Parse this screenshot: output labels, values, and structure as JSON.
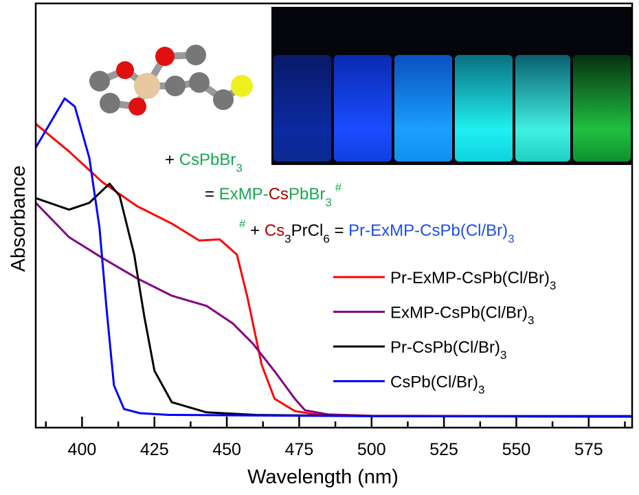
{
  "chart_data": {
    "type": "line",
    "title": "",
    "xlabel": "Wavelength (nm)",
    "ylabel": "Absorbance",
    "xlim": [
      384,
      590
    ],
    "ylim": [
      0,
      1
    ],
    "xticks": [
      400,
      425,
      450,
      475,
      500,
      525,
      550,
      575
    ],
    "yticks": [],
    "grid": false,
    "legend_position": "right-middle",
    "series": [
      {
        "name": "Pr-ExMP-CsPb(Cl/Br)",
        "sub": "3",
        "color": "#ff0000",
        "x": [
          384,
          395.5,
          407,
          419,
          431,
          440.5,
          447.5,
          453.5,
          457,
          462,
          466.5,
          473.5,
          480,
          500,
          590
        ],
        "y": [
          0.716,
          0.651,
          0.579,
          0.522,
          0.481,
          0.441,
          0.444,
          0.408,
          0.311,
          0.149,
          0.068,
          0.039,
          0.032,
          0.028,
          0.026
        ]
      },
      {
        "name": "ExMP-CsPb(Cl/Br)",
        "sub": "3",
        "color": "#800080",
        "x": [
          384,
          395.5,
          407,
          419,
          431,
          443,
          452,
          459,
          466.5,
          473.5,
          477,
          485,
          500,
          590
        ],
        "y": [
          0.53,
          0.449,
          0.4,
          0.352,
          0.311,
          0.287,
          0.246,
          0.198,
          0.133,
          0.068,
          0.041,
          0.031,
          0.027,
          0.027
        ]
      },
      {
        "name": "Pr-CsPb(Cl/Br)",
        "sub": "3",
        "color": "#000000",
        "x": [
          384,
          395.5,
          402.5,
          409.5,
          413,
          418,
          421.5,
          425,
          431,
          443,
          460,
          500,
          590
        ],
        "y": [
          0.541,
          0.514,
          0.53,
          0.575,
          0.546,
          0.408,
          0.262,
          0.134,
          0.06,
          0.036,
          0.03,
          0.027,
          0.026
        ]
      },
      {
        "name": "CsPb(Cl/Br)",
        "sub": "3",
        "color": "#0000ff",
        "x": [
          384,
          394,
          397.5,
          402.5,
          406,
          408.5,
          411,
          414.5,
          420,
          430,
          500,
          590
        ],
        "y": [
          0.66,
          0.776,
          0.757,
          0.636,
          0.473,
          0.278,
          0.1,
          0.044,
          0.034,
          0.03,
          0.027,
          0.027
        ]
      }
    ],
    "annotations": [
      {
        "segments": [
          {
            "text": "+ ",
            "color": "#000000"
          },
          {
            "text": "CsPbBr",
            "color": "#1aa552"
          },
          {
            "text": "3",
            "color": "#1aa552",
            "sub": true
          }
        ]
      },
      {
        "segments": [
          {
            "text": "= ",
            "color": "#000000"
          },
          {
            "text": "ExMP-",
            "color": "#1aa552"
          },
          {
            "text": "Cs",
            "color": "#b00000"
          },
          {
            "text": "PbBr",
            "color": "#1aa552"
          },
          {
            "text": "3",
            "color": "#1aa552",
            "sub": true
          },
          {
            "text": " #",
            "color": "#1aa552",
            "sup": true
          }
        ]
      },
      {
        "segments": [
          {
            "text": "#",
            "color": "#1aa552",
            "sup": true
          },
          {
            "text": " + ",
            "color": "#000000"
          },
          {
            "text": "Cs",
            "color": "#b00000"
          },
          {
            "text": "3",
            "color": "#000000",
            "sub": true
          },
          {
            "text": "PrCl",
            "color": "#000000"
          },
          {
            "text": "6",
            "color": "#000000",
            "sub": true
          },
          {
            "text": " = ",
            "color": "#000000"
          },
          {
            "text": "Pr-ExMP-CsPb(Cl/Br)",
            "color": "#1f4fe8"
          },
          {
            "text": "3",
            "color": "#1f4fe8",
            "sub": true
          }
        ]
      }
    ]
  }
}
